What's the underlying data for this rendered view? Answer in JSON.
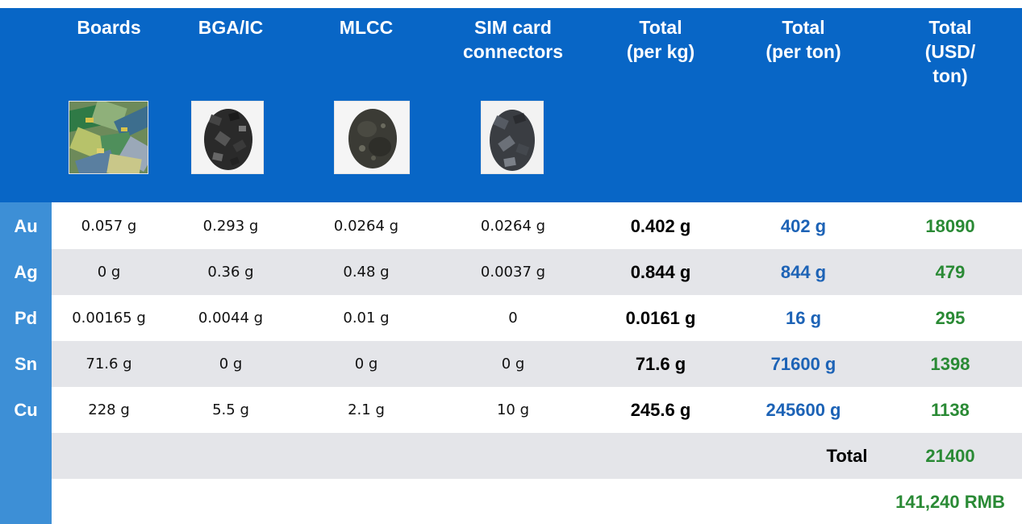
{
  "columns": {
    "boards": "Boards",
    "bga_ic": "BGA/IC",
    "mlcc": "MLCC",
    "sim": [
      "SIM card",
      "connectors"
    ],
    "total_kg": [
      "Total",
      "(per kg)"
    ],
    "total_ton": [
      "Total",
      "(per ton)"
    ],
    "total_usd": [
      "Total",
      "(USD/",
      "ton)"
    ]
  },
  "rows": [
    {
      "element": "Au",
      "boards": "0.057 g",
      "bga_ic": "0.293 g",
      "mlcc": "0.0264 g",
      "sim": "0.0264 g",
      "per_kg": "0.402 g",
      "per_ton": "402 g",
      "usd": "18090"
    },
    {
      "element": "Ag",
      "boards": "0 g",
      "bga_ic": "0.36 g",
      "mlcc": "0.48 g",
      "sim": "0.0037 g",
      "per_kg": "0.844 g",
      "per_ton": "844 g",
      "usd": "479"
    },
    {
      "element": "Pd",
      "boards": "0.00165 g",
      "bga_ic": "0.0044 g",
      "mlcc": "0.01 g",
      "sim": "0",
      "per_kg": "0.0161 g",
      "per_ton": "16 g",
      "usd": "295"
    },
    {
      "element": "Sn",
      "boards": "71.6 g",
      "bga_ic": "0 g",
      "mlcc": "0 g",
      "sim": "0 g",
      "per_kg": "71.6 g",
      "per_ton": "71600 g",
      "usd": "1398"
    },
    {
      "element": "Cu",
      "boards": "228 g",
      "bga_ic": "5.5 g",
      "mlcc": "2.1 g",
      "sim": "10 g",
      "per_kg": "245.6 g",
      "per_ton": "245600 g",
      "usd": "1138"
    }
  ],
  "summary": {
    "total_label": "Total",
    "total_usd": "21400",
    "rmb": "141,240 RMB"
  },
  "colors": {
    "header_blue": "#0866c6",
    "element_column": "#3d8fd6",
    "per_ton_text": "#1d63b6",
    "usd_text": "#2a8a35",
    "alt_row": "#e4e5e9"
  }
}
